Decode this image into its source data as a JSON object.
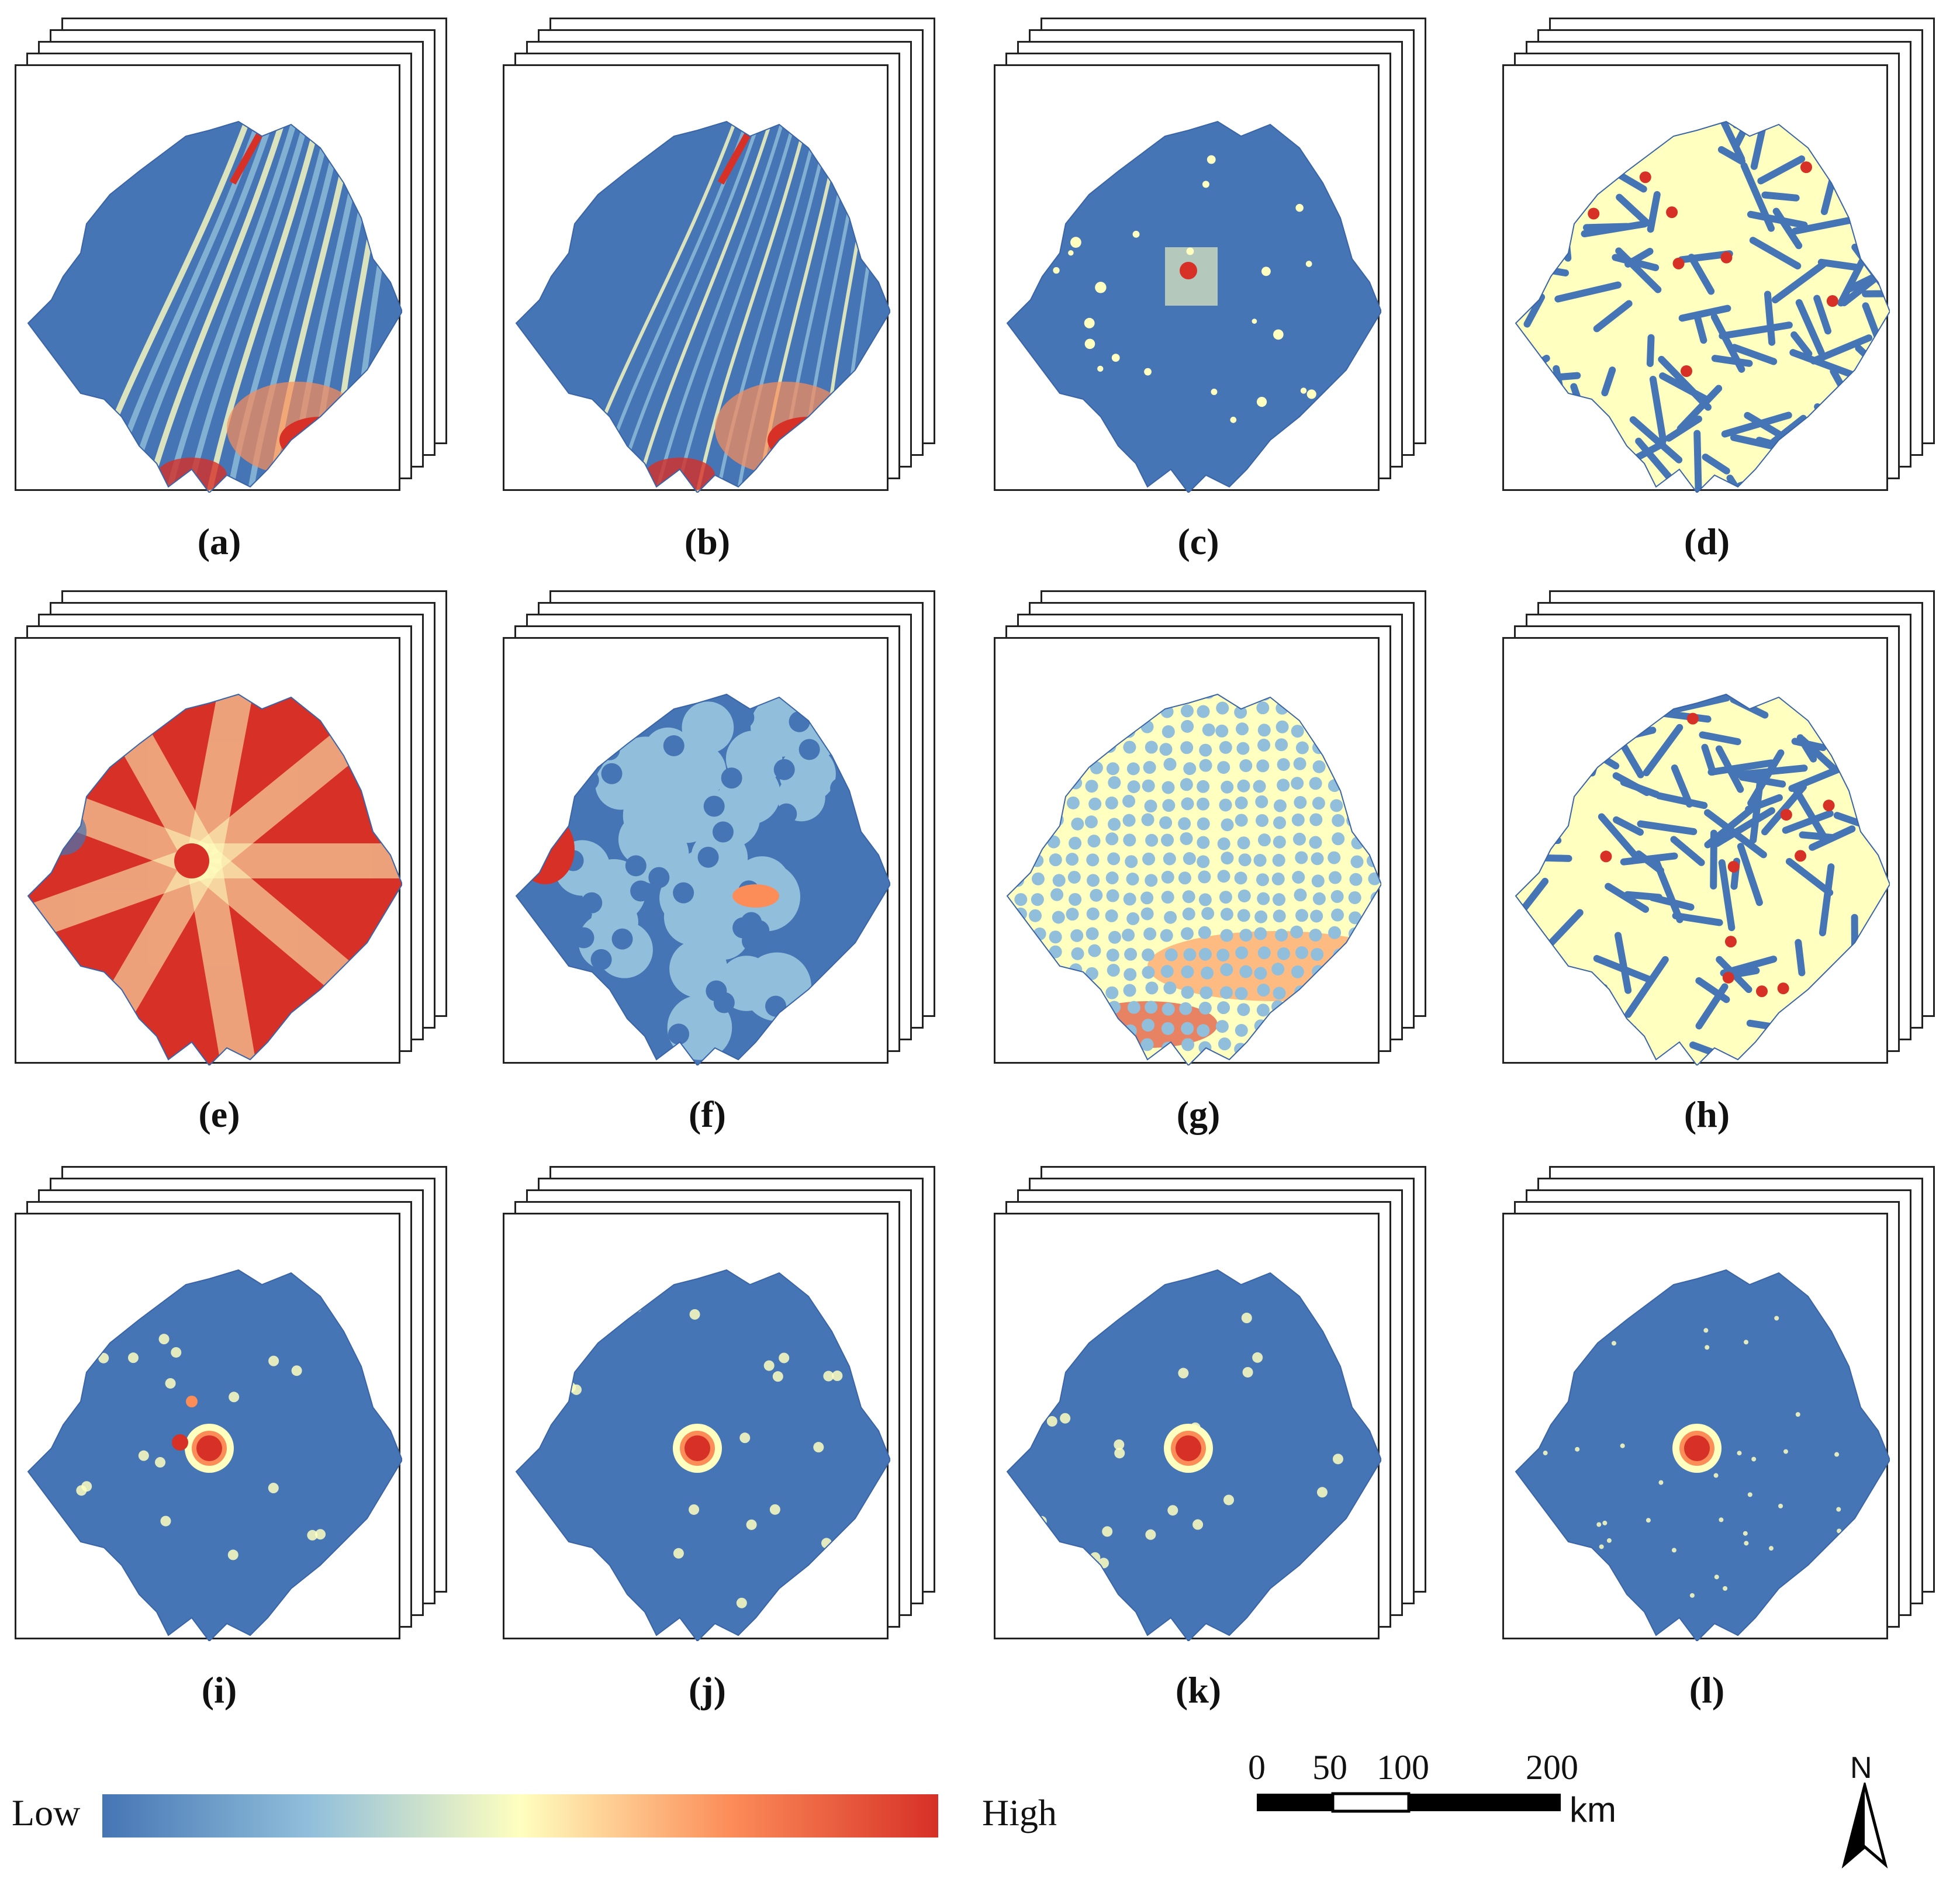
{
  "panels": [
    {
      "label": "(a)",
      "pattern": "terrain-stripes"
    },
    {
      "label": "(b)",
      "pattern": "slope-texture"
    },
    {
      "label": "(c)",
      "pattern": "sparse-hotspots"
    },
    {
      "label": "(d)",
      "pattern": "road-network"
    },
    {
      "label": "(e)",
      "pattern": "corridor-distance-high"
    },
    {
      "label": "(f)",
      "pattern": "point-distance"
    },
    {
      "label": "(g)",
      "pattern": "dense-point-distance"
    },
    {
      "label": "(h)",
      "pattern": "stream-network"
    },
    {
      "label": "(i)",
      "pattern": "kernel-density-1"
    },
    {
      "label": "(j)",
      "pattern": "kernel-density-2"
    },
    {
      "label": "(k)",
      "pattern": "kernel-density-3"
    },
    {
      "label": "(l)",
      "pattern": "kernel-density-4"
    }
  ],
  "legend": {
    "low": "Low",
    "high": "High",
    "colors": [
      "#4575b4",
      "#91bfdb",
      "#ffffbf",
      "#fc8d59",
      "#d73027"
    ]
  },
  "scalebar": {
    "ticks": [
      "0",
      "50",
      "100",
      "200"
    ],
    "unit": "km"
  },
  "north_arrow": {
    "label": "N"
  }
}
